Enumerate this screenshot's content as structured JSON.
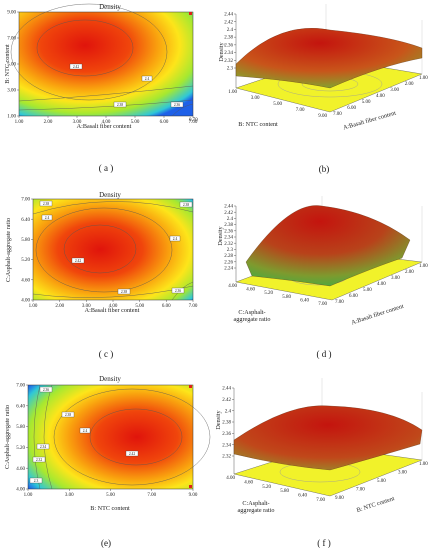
{
  "panels": [
    {
      "id": "a",
      "kind": "contour",
      "title": "Density",
      "xlabel": "A:Basalt fiber content",
      "ylabel": "B: NTC content",
      "xticks": [
        "1.00",
        "2.00",
        "3.00",
        "4.00",
        "5.00",
        "6.00",
        "7.00"
      ],
      "yticks": [
        "1.00",
        "3.00",
        "5.00",
        "7.00",
        "9.00"
      ],
      "contour_labels": [
        "2.42",
        "2.4",
        "2.38",
        "2.36"
      ],
      "corner_label": "0.70",
      "caption": "( a )"
    },
    {
      "id": "b",
      "kind": "surface",
      "zlabel": "Density",
      "zticks": [
        "2.3",
        "2.32",
        "2.34",
        "2.36",
        "2.38",
        "2.4",
        "2.42",
        "2.44"
      ],
      "axis1_label": "B: NTC content",
      "axis1_ticks": [
        "1.00",
        "3.00",
        "5.00",
        "7.00",
        "9.00"
      ],
      "axis2_label": "A:Basalt fiber content",
      "axis2_ticks": [
        "1.00",
        "2.00",
        "3.00",
        "4.00",
        "5.00",
        "6.00",
        "7.00"
      ],
      "caption": "(b)"
    },
    {
      "id": "c",
      "kind": "contour",
      "title": "Density",
      "xlabel": "A:Basalt fiber content",
      "ylabel": "C:Asphalt-aggregate ratio",
      "xticks": [
        "1.00",
        "2.00",
        "3.00",
        "4.00",
        "5.00",
        "6.00",
        "7.00"
      ],
      "yticks": [
        "4.00",
        "4.60",
        "5.20",
        "5.80",
        "6.40",
        "7.00"
      ],
      "contour_labels": [
        "2.38",
        "2.4",
        "2.42",
        "2.4",
        "2.38",
        "2.36",
        "2.38"
      ],
      "caption": "( c )"
    },
    {
      "id": "d",
      "kind": "surface",
      "zlabel": "Density",
      "zticks": [
        "2.24",
        "2.26",
        "2.28",
        "2.3",
        "2.32",
        "2.34",
        "2.36",
        "2.38",
        "2.4",
        "2.42",
        "2.44"
      ],
      "axis1_label": "C:Asphalt-\naggregate ratio",
      "axis1_ticks": [
        "4.00",
        "4.60",
        "5.20",
        "5.80",
        "6.40",
        "7.00"
      ],
      "axis2_label": "A:Basalt fiber content",
      "axis2_ticks": [
        "1.00",
        "2.00",
        "3.00",
        "4.00",
        "5.00",
        "6.00",
        "7.00"
      ],
      "caption": "( d )"
    },
    {
      "id": "e",
      "kind": "contour",
      "title": "Density",
      "xlabel": "B: NTC content",
      "ylabel": "C:Asphalt-aggregate ratio",
      "xticks": [
        "1.00",
        "3.00",
        "5.00",
        "7.00",
        "9.00"
      ],
      "yticks": [
        "4.00",
        "4.60",
        "5.20",
        "5.80",
        "6.40",
        "7.00"
      ],
      "contour_labels": [
        "2.36",
        "2.38",
        "2.4",
        "2.42",
        "2.34",
        "2.32",
        "2.3"
      ],
      "caption": "(e)"
    },
    {
      "id": "f",
      "kind": "surface",
      "zlabel": "Density",
      "zticks": [
        "2.32",
        "2.34",
        "2.36",
        "2.38",
        "2.4",
        "2.42",
        "2.44"
      ],
      "axis1_label": "C:Asphalt-\naggregate ratio",
      "axis1_ticks": [
        "4.00",
        "4.60",
        "5.20",
        "5.80",
        "6.40",
        "7.00"
      ],
      "axis2_label": "B: NTC content",
      "axis2_ticks": [
        "1.00",
        "3.00",
        "5.00",
        "7.00",
        "9.00"
      ],
      "caption": "( f )"
    }
  ],
  "chart_data": [
    {
      "type": "heatmap",
      "subtype": "contour",
      "title": "Density",
      "xlabel": "A:Basalt fiber content",
      "ylabel": "B: NTC content",
      "xlim": [
        1,
        7
      ],
      "ylim": [
        1,
        9
      ],
      "optimum": {
        "x": 3.4,
        "y": 6.4,
        "z": 2.43
      },
      "color_range": [
        2.3,
        2.44
      ]
    },
    {
      "type": "heatmap",
      "subtype": "surface3d",
      "zlabel": "Density",
      "x": "A:Basalt fiber content",
      "y": "B: NTC content",
      "zlim": [
        2.3,
        2.44
      ],
      "xlim": [
        1,
        7
      ],
      "ylim": [
        1,
        9
      ]
    },
    {
      "type": "heatmap",
      "subtype": "contour",
      "title": "Density",
      "xlabel": "A:Basalt fiber content",
      "ylabel": "C:Asphalt-aggregate ratio",
      "xlim": [
        1,
        7
      ],
      "ylim": [
        4,
        7
      ],
      "optimum": {
        "x": 3.6,
        "y": 5.45,
        "z": 2.43
      },
      "color_range": [
        2.3,
        2.44
      ]
    },
    {
      "type": "heatmap",
      "subtype": "surface3d",
      "zlabel": "Density",
      "x": "A:Basalt fiber content",
      "y": "C:Asphalt-aggregate ratio",
      "zlim": [
        2.24,
        2.44
      ],
      "xlim": [
        1,
        7
      ],
      "ylim": [
        4,
        7
      ]
    },
    {
      "type": "heatmap",
      "subtype": "contour",
      "title": "Density",
      "xlabel": "B: NTC content",
      "ylabel": "C:Asphalt-aggregate ratio",
      "xlim": [
        1,
        9
      ],
      "ylim": [
        4,
        7
      ],
      "optimum": {
        "x": 6.2,
        "y": 5.5,
        "z": 2.43
      },
      "color_range": [
        2.28,
        2.44
      ]
    },
    {
      "type": "heatmap",
      "subtype": "surface3d",
      "zlabel": "Density",
      "x": "B: NTC content",
      "y": "C:Asphalt-aggregate ratio",
      "zlim": [
        2.32,
        2.44
      ],
      "xlim": [
        1,
        9
      ],
      "ylim": [
        4,
        7
      ]
    }
  ]
}
